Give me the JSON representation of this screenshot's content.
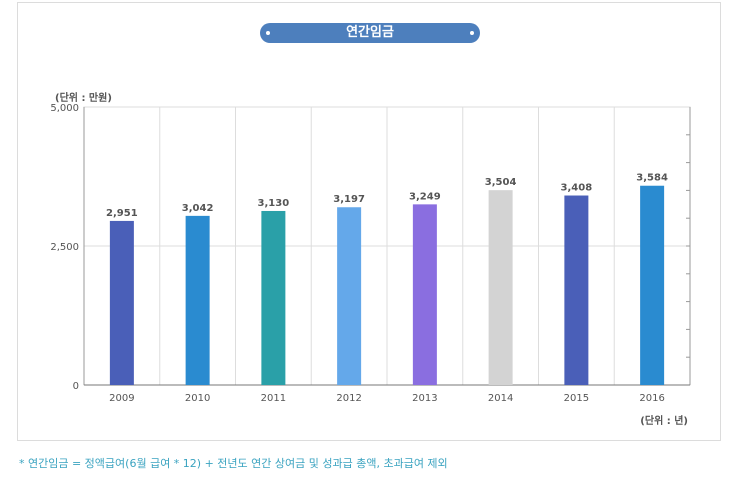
{
  "chart_data": {
    "type": "bar",
    "title": "연간임금",
    "ylabel": "(단위 : 만원)",
    "xlabel": "(단위 : 년)",
    "categories": [
      "2009",
      "2010",
      "2011",
      "2012",
      "2013",
      "2014",
      "2015",
      "2016"
    ],
    "values": [
      2951,
      3042,
      3130,
      3197,
      3249,
      3504,
      3408,
      3584
    ],
    "value_labels": [
      "2,951",
      "3,042",
      "3,130",
      "3,197",
      "3,249",
      "3,504",
      "3,408",
      "3,584"
    ],
    "colors": [
      "#4a5fb8",
      "#2a8bd0",
      "#2aa0a8",
      "#64a8ea",
      "#8a6ee0",
      "#d3d3d3",
      "#4a5fb8",
      "#2a8bd0"
    ],
    "ylim": [
      0,
      5000
    ],
    "yticks": [
      0,
      2500,
      5000
    ],
    "ytick_labels": [
      "0",
      "2,500",
      "5,000"
    ],
    "grid": true
  },
  "footnote": "* 연간임금 = 정액급여(6월 급여 * 12) + 전년도 연간 상여금 및 성과급 총액, 초과급여 제외"
}
